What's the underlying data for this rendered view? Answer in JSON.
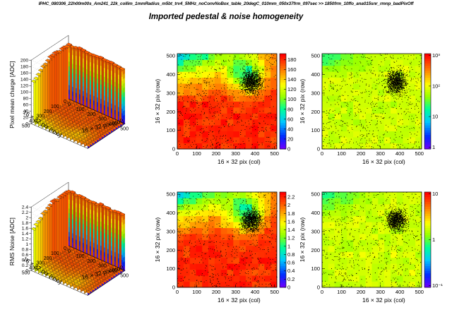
{
  "header": {
    "run_label": "IPHC_080306_22h00m00s_Am241_22k_collim_1mmRadius_m5bt_trv4_5MHz_noConvNoBox_table_20degC_010mm_050x37frm_097sec >> 1850frm_10ffo_ana015snr_rmnp_badPixOff",
    "title": "Imported pedestal & noise homogeneity"
  },
  "chart_data": [
    {
      "id": "pedestal-3d",
      "type": "lego3d",
      "zlabel": "Pixel mean charge  [ADC]",
      "xlabel": "16 × 32 pix  (col)",
      "ylabel": "16 × 32 pix  (row)",
      "x_ticks": [
        "0",
        "100",
        "200",
        "300",
        "400",
        "500"
      ],
      "y_ticks": [
        "0",
        "100",
        "200",
        "300",
        "400",
        "500"
      ],
      "z_ticks": [
        "0",
        "20",
        "40",
        "60",
        "80",
        "100",
        "120",
        "140",
        "160",
        "180",
        "200"
      ],
      "zlim": [
        0,
        200
      ]
    },
    {
      "id": "pedestal-map",
      "type": "heatmap",
      "xlabel": "16 × 32 pix  (col)",
      "ylabel": "16 × 32 pix  (row)",
      "x_ticks": [
        "0",
        "100",
        "200",
        "300",
        "400",
        "500"
      ],
      "y_ticks": [
        "0",
        "100",
        "200",
        "300",
        "400",
        "500"
      ],
      "colorbar_ticks": [
        "0",
        "20",
        "40",
        "60",
        "80",
        "100",
        "120",
        "140",
        "160",
        "180"
      ],
      "zlim": [
        0,
        190
      ]
    },
    {
      "id": "pedestal-log-map",
      "type": "heatmap",
      "xlabel": "16 × 32 pix  (col)",
      "ylabel": "16 × 32 pix  (row)",
      "x_ticks": [
        "0",
        "100",
        "200",
        "300",
        "400",
        "500"
      ],
      "y_ticks": [
        "0",
        "100",
        "200",
        "300",
        "400",
        "500"
      ],
      "colorbar_ticks": [
        "1",
        "10",
        "10²",
        "10³"
      ],
      "log_scale": true
    },
    {
      "id": "noise-3d",
      "type": "lego3d",
      "zlabel": "RMS Noise  [ADC]",
      "xlabel": "16 × 32 pix  (col)",
      "ylabel": "16 × 32 pix  (row)",
      "x_ticks": [
        "0",
        "100",
        "200",
        "300",
        "400",
        "500"
      ],
      "y_ticks": [
        "0",
        "100",
        "200",
        "300",
        "400",
        "500"
      ],
      "z_ticks": [
        "0",
        "0.2",
        "0.4",
        "0.6",
        "0.8",
        "1",
        "1.2",
        "1.4",
        "1.6",
        "1.8",
        "2",
        "2.2",
        "2.4"
      ],
      "zlim": [
        0,
        2.4
      ]
    },
    {
      "id": "noise-map",
      "type": "heatmap",
      "xlabel": "16 × 32 pix  (col)",
      "ylabel": "16 × 32 pix  (row)",
      "x_ticks": [
        "0",
        "100",
        "200",
        "300",
        "400",
        "500"
      ],
      "y_ticks": [
        "0",
        "100",
        "200",
        "300",
        "400",
        "500"
      ],
      "colorbar_ticks": [
        "0",
        "0.2",
        "0.4",
        "0.6",
        "0.8",
        "1",
        "1.2",
        "1.4",
        "1.6",
        "1.8",
        "2",
        "2.2"
      ],
      "zlim": [
        0,
        2.3
      ]
    },
    {
      "id": "noise-log-map",
      "type": "heatmap",
      "xlabel": "16 × 32 pix  (col)",
      "ylabel": "16 × 32 pix  (row)",
      "x_ticks": [
        "0",
        "100",
        "200",
        "300",
        "400",
        "500"
      ],
      "y_ticks": [
        "0",
        "100",
        "200",
        "300",
        "400",
        "500"
      ],
      "colorbar_ticks": [
        "10⁻¹",
        "1",
        "10"
      ],
      "log_scale": true
    }
  ]
}
